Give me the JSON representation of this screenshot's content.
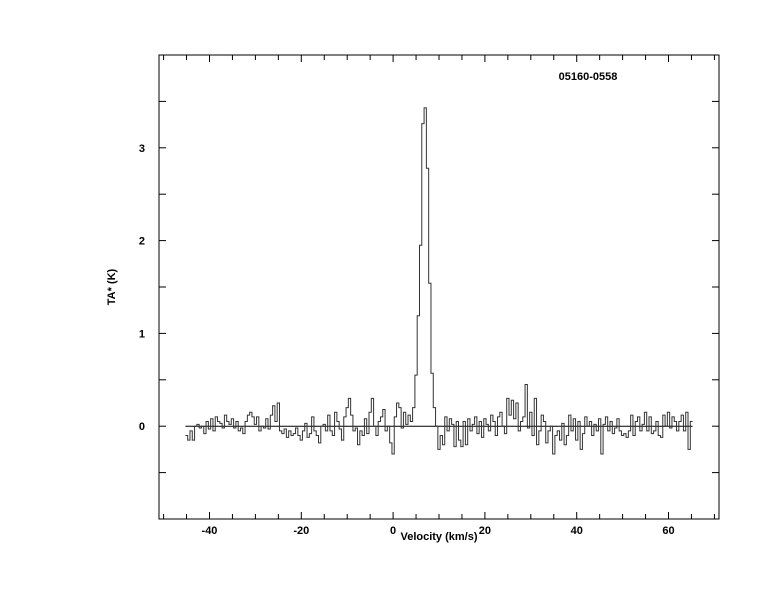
{
  "chart_data": {
    "type": "line",
    "style": "histogram-step",
    "title": "05160-0558",
    "xlabel": "Velocity (km/s)",
    "ylabel": "TA* (K)",
    "xlim": [
      -51,
      71
    ],
    "ylim": [
      -1,
      4
    ],
    "xticks": [
      -40,
      -20,
      0,
      20,
      40,
      60
    ],
    "yticks": [
      0,
      1,
      2,
      3
    ],
    "xtick_labels": [
      "-40",
      "-20",
      "0",
      "20",
      "40",
      "60"
    ],
    "ytick_labels": [
      "0",
      "1",
      "2",
      "3"
    ],
    "x_minor_step": 5,
    "y_minor_step": 0.5,
    "grid": false,
    "baseline": 0,
    "x_start": -45,
    "x_step": 0.5,
    "values": [
      -0.1,
      -0.15,
      -0.05,
      -0.15,
      0.0,
      0.02,
      -0.02,
      0.0,
      -0.08,
      0.05,
      -0.03,
      0.08,
      -0.05,
      0.1,
      0.05,
      0.03,
      -0.02,
      0.12,
      0.05,
      0.02,
      0.08,
      -0.02,
      0.05,
      -0.05,
      -0.02,
      -0.08,
      0.05,
      0.12,
      0.15,
      0.1,
      0.02,
      0.1,
      -0.05,
      0.0,
      -0.02,
      0.08,
      -0.03,
      0.12,
      0.22,
      0.05,
      0.25,
      -0.05,
      -0.08,
      -0.03,
      -0.12,
      -0.05,
      -0.1,
      -0.08,
      -0.02,
      -0.1,
      -0.15,
      -0.05,
      0.03,
      -0.12,
      -0.08,
      0.1,
      -0.05,
      -0.1,
      -0.18,
      0.0,
      0.02,
      -0.05,
      0.12,
      -0.05,
      -0.1,
      0.15,
      0.05,
      -0.03,
      -0.15,
      0.1,
      0.2,
      0.3,
      0.12,
      -0.05,
      -0.02,
      -0.2,
      -0.05,
      -0.1,
      0.08,
      -0.08,
      0.15,
      0.3,
      0.0,
      -0.1,
      0.05,
      0.1,
      0.18,
      -0.05,
      0.0,
      -0.18,
      -0.3,
      0.1,
      0.25,
      0.2,
      -0.02,
      0.15,
      0.02,
      0.12,
      0.05,
      0.2,
      0.55,
      1.19,
      1.95,
      3.26,
      3.43,
      2.78,
      1.54,
      0.57,
      0.2,
      0.0,
      -0.25,
      -0.1,
      -0.2,
      0.1,
      -0.05,
      0.08,
      0.02,
      -0.22,
      0.05,
      -0.15,
      -0.22,
      0.05,
      -0.2,
      0.08,
      -0.05,
      0.02,
      0.1,
      -0.08,
      0.05,
      -0.12,
      0.08,
      0.02,
      -0.05,
      0.12,
      0.05,
      -0.1,
      0.1,
      0.15,
      0.0,
      -0.08,
      0.3,
      0.12,
      0.28,
      0.08,
      0.25,
      -0.05,
      0.05,
      0.1,
      0.45,
      -0.02,
      0.15,
      -0.1,
      0.3,
      -0.2,
      -0.05,
      0.12,
      0.05,
      -0.18,
      -0.05,
      0.0,
      -0.3,
      -0.1,
      -0.05,
      -0.15,
      0.03,
      -0.2,
      -0.1,
      0.12,
      -0.05,
      0.08,
      -0.15,
      0.05,
      -0.25,
      -0.08,
      0.1,
      0.0,
      0.05,
      -0.1,
      0.02,
      -0.05,
      0.08,
      -0.3,
      0.02,
      0.1,
      -0.05,
      0.05,
      -0.08,
      -0.02,
      0.08,
      -0.05,
      -0.1,
      -0.08,
      -0.12,
      -0.05,
      0.12,
      -0.1,
      0.05,
      0.1,
      -0.05,
      0.02,
      0.15,
      -0.05,
      0.1,
      -0.08,
      -0.05,
      0.05,
      -0.1,
      -0.12,
      0.12,
      0.0,
      0.15,
      -0.02,
      0.1,
      0.05,
      -0.05,
      0.05,
      0.12,
      -0.05,
      0.15,
      -0.25,
      0.05
    ],
    "colors": {
      "line": "#333333",
      "axes": "#000000",
      "background": "#ffffff"
    }
  }
}
